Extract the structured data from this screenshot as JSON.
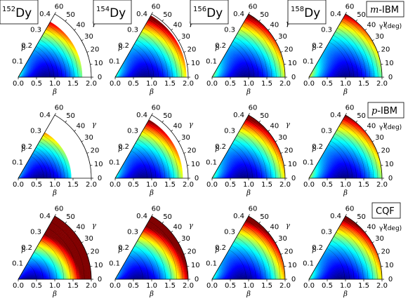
{
  "isotopes": [
    {
      "mass": "152",
      "element": "Dy"
    },
    {
      "mass": "154",
      "element": "Dy"
    },
    {
      "mass": "156",
      "element": "Dy"
    },
    {
      "mass": "158",
      "element": "Dy"
    }
  ],
  "models": [
    {
      "prefix": "m",
      "suffix": "-IBM"
    },
    {
      "prefix": "p",
      "suffix": "-IBM"
    },
    {
      "prefix": "",
      "suffix": "CQF"
    }
  ],
  "axes": {
    "beta_label": "β",
    "gamma_label": "γ",
    "gamma_unit": "γ (deg)",
    "beta_ticks": [
      "0.0",
      "0.5",
      "1.0",
      "1.5",
      "2.0"
    ],
    "beta_ray_ticks": [
      "0.1",
      "0.2",
      "0.3",
      "0.4"
    ],
    "gamma_ticks": [
      "0",
      "10",
      "20",
      "30",
      "40",
      "50",
      "60"
    ]
  },
  "panels": [
    {
      "row": 0,
      "col": 0,
      "beta_max": 1.75,
      "min_beta": 0.75,
      "min_gamma": 0
    },
    {
      "row": 0,
      "col": 1,
      "beta_max": 1.95,
      "min_beta": 0.8,
      "min_gamma": 0
    },
    {
      "row": 0,
      "col": 2,
      "beta_max": 2.0,
      "min_beta": 0.9,
      "min_gamma": 0
    },
    {
      "row": 0,
      "col": 3,
      "beta_max": 2.0,
      "min_beta": 1.0,
      "min_gamma": 0
    },
    {
      "row": 1,
      "col": 0,
      "beta_max": 1.45,
      "min_beta": 0.6,
      "min_gamma": 0
    },
    {
      "row": 1,
      "col": 1,
      "beta_max": 1.85,
      "min_beta": 0.75,
      "min_gamma": 0
    },
    {
      "row": 1,
      "col": 2,
      "beta_max": 2.0,
      "min_beta": 0.85,
      "min_gamma": 0
    },
    {
      "row": 1,
      "col": 3,
      "beta_max": 2.0,
      "min_beta": 0.95,
      "min_gamma": 0
    },
    {
      "row": 2,
      "col": 0,
      "beta_max": 2.0,
      "min_beta": 0.3,
      "min_gamma": 0
    },
    {
      "row": 2,
      "col": 1,
      "beta_max": 2.0,
      "min_beta": 0.6,
      "min_gamma": 0
    },
    {
      "row": 2,
      "col": 2,
      "beta_max": 2.0,
      "min_beta": 0.8,
      "min_gamma": 0
    },
    {
      "row": 2,
      "col": 3,
      "beta_max": 2.0,
      "min_beta": 0.85,
      "min_gamma": 0
    }
  ],
  "colormap": "jet"
}
